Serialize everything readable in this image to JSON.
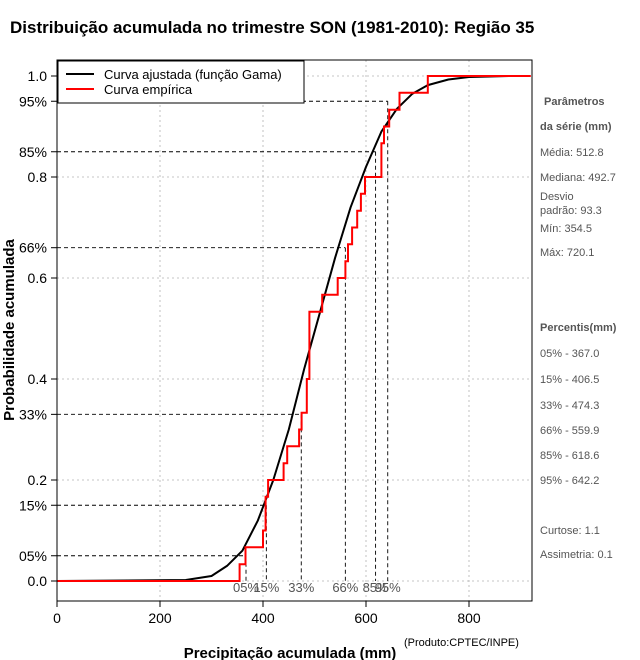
{
  "chart_data": {
    "type": "line",
    "title": "Distribuição acumulada no trimestre SON (1981-2010): Região 35",
    "xlabel": "Precipitação acumulada (mm)",
    "ylabel": "Probabilidade acumulada",
    "xlim": [
      0,
      920
    ],
    "ylim": [
      0,
      1
    ],
    "x_ticks": [
      "0",
      "200",
      "400",
      "600",
      "800"
    ],
    "y_ticks": [
      "0.0",
      "0.2",
      "0.4",
      "0.6",
      "0.8",
      "1.0"
    ],
    "legend": [
      "Curva ajustada (função Gama)",
      "Curva empírica"
    ],
    "colors": {
      "fitted": "#000000",
      "empirical": "#ff0000",
      "grid": "#b3b3b3",
      "guides": "#000000"
    },
    "series": [
      {
        "name": "Curva ajustada (função Gama)",
        "x": [
          0,
          250,
          300,
          330,
          360,
          390,
          420,
          450,
          480,
          510,
          540,
          570,
          600,
          630,
          660,
          690,
          720,
          760,
          800,
          840,
          880
        ],
        "y": [
          0,
          0.002,
          0.01,
          0.03,
          0.06,
          0.12,
          0.2,
          0.3,
          0.42,
          0.53,
          0.64,
          0.74,
          0.82,
          0.89,
          0.935,
          0.965,
          0.982,
          0.993,
          0.998,
          0.999,
          1.0
        ]
      },
      {
        "name": "Curva empírica",
        "x": [
          0,
          354.5,
          366,
          400,
          405,
          410,
          440,
          447,
          470,
          475,
          485,
          490,
          515,
          545,
          560,
          565,
          573,
          583,
          590,
          598,
          630,
          635,
          645,
          665,
          720,
          920
        ],
        "y": [
          0,
          0.033,
          0.067,
          0.1,
          0.167,
          0.2,
          0.233,
          0.267,
          0.3,
          0.333,
          0.4,
          0.533,
          0.567,
          0.6,
          0.633,
          0.667,
          0.7,
          0.733,
          0.767,
          0.8,
          0.867,
          0.9,
          0.933,
          0.967,
          1.0,
          1.0
        ]
      }
    ],
    "percentile_guides": [
      {
        "p": 0.05,
        "x": 367.0,
        "y_label": "05%",
        "x_label": "05%"
      },
      {
        "p": 0.15,
        "x": 406.5,
        "y_label": "15%",
        "x_label": "15%"
      },
      {
        "p": 0.33,
        "x": 474.3,
        "y_label": "33%",
        "x_label": "33%"
      },
      {
        "p": 0.66,
        "x": 559.9,
        "y_label": "66%",
        "x_label": "66%"
      },
      {
        "p": 0.85,
        "x": 618.6,
        "y_label": "85%",
        "x_label": "85%"
      },
      {
        "p": 0.95,
        "x": 642.2,
        "y_label": "95%",
        "x_label": "95%"
      }
    ]
  },
  "side_panel": {
    "params_heading_1": "Parâmetros",
    "params_heading_2": "da série (mm)",
    "media": "Média: 512.8",
    "mediana": "Mediana: 492.7",
    "desvio_1": "Desvio",
    "desvio_2": "padrão: 93.3",
    "min": "Mín: 354.5",
    "max": "Máx: 720.1",
    "percentis_heading": "Percentis(mm)",
    "p05": "05% - 367.0",
    "p15": "15% - 406.5",
    "p33": "33% - 474.3",
    "p66": "66% - 559.9",
    "p85": "85% - 618.6",
    "p95": "95% - 642.2",
    "curtose": "Curtose: 1.1",
    "assimetria": "Assimetria: 0.1"
  },
  "credit": "(Produto:CPTEC/INPE)"
}
